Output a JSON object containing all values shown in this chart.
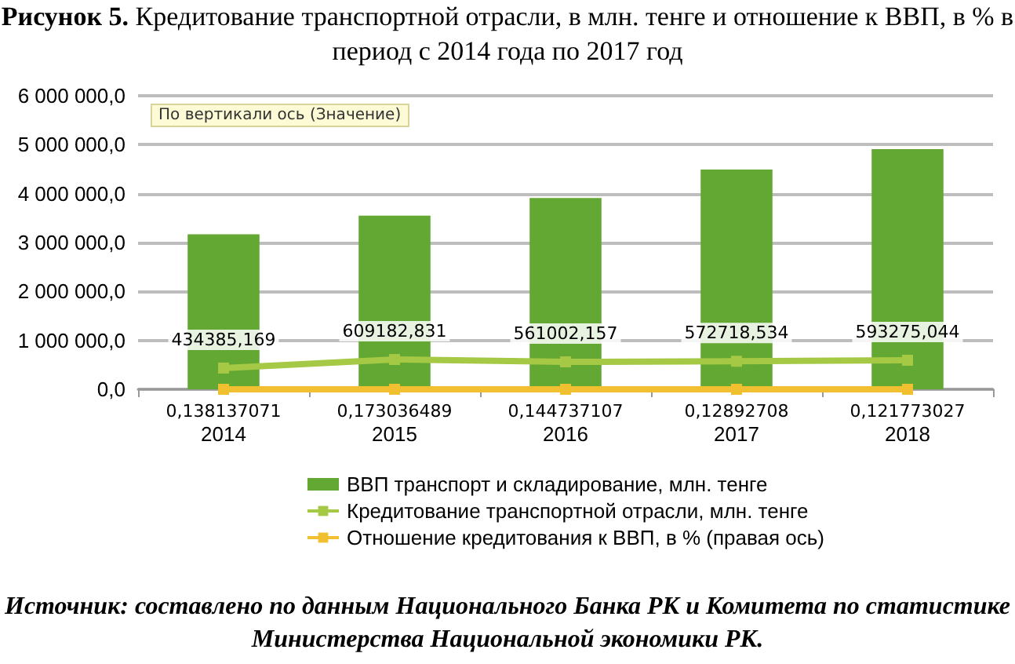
{
  "chart_data": {
    "type": "bar",
    "title": "Рисунок 5. Кредитование транспортной отрасли, в млн. тенге и отношение к ВВП, в % в период с 2014 года по 2017 год",
    "categories": [
      "2014",
      "2015",
      "2016",
      "2017",
      "2018"
    ],
    "series": [
      {
        "name": "ВВП транспорт и складирование, млн. тенге",
        "color": "#62a832",
        "values": [
          3170000,
          3550000,
          3910000,
          4490000,
          4910000
        ]
      },
      {
        "name": "Кредитование транспортной отрасли, млн. тенге",
        "type": "line",
        "color": "#a5c845",
        "values": [
          434385.169,
          609182.831,
          561002.157,
          572718.534,
          593275.044
        ],
        "value_labels": [
          "434385,169",
          "609182,831",
          "561002,157",
          "572718,534",
          "593275,044"
        ]
      },
      {
        "name": "Отношение кредитования к ВВП, в % (правая ось)",
        "type": "line",
        "color": "#f0c030",
        "values": [
          0.138137071,
          0.173036489,
          0.144737107,
          0.12892708,
          0.121773027
        ],
        "value_labels": [
          "0,138137071",
          "0,173036489",
          "0,144737107",
          "0,12892708",
          "0,121773027"
        ]
      }
    ],
    "ylim": [
      0,
      6000000
    ],
    "yticks": [
      {
        "value": 0,
        "label": "0,0"
      },
      {
        "value": 1000000,
        "label": "1 000 000,0"
      },
      {
        "value": 2000000,
        "label": "2 000 000,0"
      },
      {
        "value": 3000000,
        "label": "3 000 000,0"
      },
      {
        "value": 4000000,
        "label": "4 000 000,0"
      },
      {
        "value": 5000000,
        "label": "5 000 000,0"
      },
      {
        "value": 6000000,
        "label": "6 000 000,0"
      }
    ],
    "grid": "y",
    "legend": "bottom",
    "marker": "square",
    "annotations": [
      "По вертикали ось (Значение)",
      "Источник: составлено по данным Национального Банка РК и Комитета по статистике Министерства Национальной экономики РК."
    ]
  }
}
